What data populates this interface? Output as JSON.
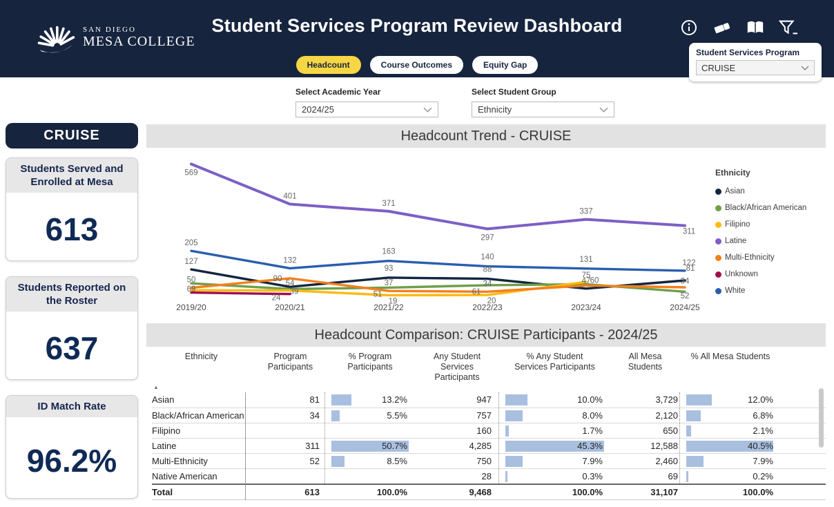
{
  "header": {
    "logo": {
      "line1": "SAN DIEGO",
      "line2": "MESA COLLEGE"
    },
    "title": "Student Services Program Review Dashboard",
    "tabs": [
      {
        "label": "Headcount",
        "active": true
      },
      {
        "label": "Course Outcomes",
        "active": false
      },
      {
        "label": "Equity Gap",
        "active": false
      }
    ],
    "icons": [
      "info-icon",
      "eraser-icon",
      "book-icon",
      "filter-icon"
    ],
    "program_filter": {
      "label": "Student Services Program",
      "value": "CRUISE"
    }
  },
  "filters": {
    "academic_year": {
      "label": "Select Academic Year",
      "value": "2024/25"
    },
    "student_group": {
      "label": "Select Student Group",
      "value": "Ethnicity"
    }
  },
  "sidebar": {
    "program_name": "CRUISE",
    "cards": [
      {
        "title": "Students Served and\nEnrolled at Mesa",
        "value": "613",
        "one_line": false
      },
      {
        "title": "Students Reported on\nthe Roster",
        "value": "637",
        "one_line": false
      },
      {
        "title": "ID Match Rate",
        "value": "96.2%",
        "one_line": true
      }
    ]
  },
  "chart_data": [
    {
      "id": "headcount_trend",
      "type": "line",
      "title": "Headcount Trend - CRUISE",
      "legend_title": "Ethnicity",
      "legend_position": "right",
      "gridlines": false,
      "ylim": [
        0,
        600
      ],
      "categories": [
        "2019/20",
        "2020/21",
        "2021/22",
        "2022/23",
        "2023/24",
        "2024/25"
      ],
      "series": [
        {
          "name": "Asian",
          "color": "#12263f",
          "values": [
            127,
            54,
            93,
            88,
            47,
            81
          ],
          "labels": [
            [
              "127",
              0,
              -8
            ],
            [
              "54",
              0,
              -2
            ],
            [
              "93",
              0,
              -10
            ],
            [
              "88",
              0,
              -10
            ],
            [
              "47",
              0,
              -8
            ],
            [
              "81",
              8,
              -14
            ]
          ]
        },
        {
          "name": "Black/African American",
          "color": "#6f9e49",
          "values": [
            69,
            45,
            51,
            61,
            65,
            34
          ],
          "labels": [
            [
              "69",
              0,
              12
            ],
            null,
            [
              "51",
              -16,
              13
            ],
            [
              "61",
              -16,
              13
            ],
            null,
            [
              "34",
              0,
              -12
            ]
          ]
        },
        {
          "name": "Filipino",
          "color": "#fcba12",
          "values": [
            40,
            39,
            19,
            20,
            75
          ],
          "labels": [
            null,
            [
              "39",
              6,
              5
            ],
            [
              "19",
              6,
              12
            ],
            [
              "20",
              6,
              12
            ],
            [
              "75",
              0,
              -6
            ]
          ]
        },
        {
          "name": "Latine",
          "color": "#7d5fc6",
          "values": [
            569,
            401,
            371,
            297,
            337,
            311
          ],
          "labels": [
            [
              "569",
              0,
              16
            ],
            [
              "401",
              0,
              -8
            ],
            [
              "371",
              0,
              -8
            ],
            [
              "297",
              0,
              16
            ],
            [
              "337",
              0,
              -8
            ],
            [
              "311",
              6,
              12
            ]
          ]
        },
        {
          "name": "Multi-Ethnicity",
          "color": "#f3801e",
          "values": [
            50,
            90,
            37,
            34,
            60,
            52
          ],
          "labels": [
            [
              "50",
              0,
              -8
            ],
            [
              "90",
              -18,
              4
            ],
            [
              "37",
              0,
              -8
            ],
            [
              "34",
              0,
              -8
            ],
            [
              "60",
              12,
              -4
            ],
            [
              "52",
              0,
              16
            ]
          ]
        },
        {
          "name": "Unknown",
          "color": "#a00d4f",
          "values": [
            30,
            24
          ],
          "labels": [
            null,
            [
              "24",
              -20,
              9
            ]
          ]
        },
        {
          "name": "White",
          "color": "#2a5db0",
          "values": [
            205,
            132,
            163,
            140,
            131,
            122
          ],
          "labels": [
            [
              "205",
              0,
              -8
            ],
            [
              "132",
              0,
              -8
            ],
            [
              "163",
              0,
              -10
            ],
            [
              "140",
              0,
              -10
            ],
            [
              "131",
              0,
              -10
            ],
            [
              "122",
              6,
              -8
            ]
          ]
        }
      ]
    },
    {
      "id": "headcount_comparison",
      "type": "table",
      "title": "Headcount Comparison: CRUISE Participants - 2024/25",
      "bar_color": "#a9bfdf",
      "sort_indicator": "▲",
      "columns": [
        {
          "key": "ethnicity",
          "label": "Ethnicity",
          "align": "left"
        },
        {
          "key": "program",
          "label": "Program\nParticipants",
          "align": "right"
        },
        {
          "key": "pct_program",
          "label": "% Program\nParticipants",
          "type": "bar"
        },
        {
          "key": "any_ss",
          "label": "Any Student\nServices\nParticipants",
          "align": "right"
        },
        {
          "key": "pct_any",
          "label": "% Any Student\nServices Participants",
          "type": "bar"
        },
        {
          "key": "all_mesa",
          "label": "All Mesa\nStudents",
          "align": "right"
        },
        {
          "key": "pct_all",
          "label": "% All Mesa Students",
          "type": "bar"
        }
      ],
      "rows": [
        {
          "ethnicity": "Asian",
          "program": "81",
          "pct_program": "13.2%",
          "pct_program_value": 13.2,
          "any_ss": "947",
          "pct_any": "10.0%",
          "pct_any_value": 10.0,
          "all_mesa": "3,729",
          "pct_all": "12.0%",
          "pct_all_value": 12.0
        },
        {
          "ethnicity": "Black/African American",
          "program": "34",
          "pct_program": "5.5%",
          "pct_program_value": 5.5,
          "any_ss": "757",
          "pct_any": "8.0%",
          "pct_any_value": 8.0,
          "all_mesa": "2,120",
          "pct_all": "6.8%",
          "pct_all_value": 6.8
        },
        {
          "ethnicity": "Filipino",
          "program": "",
          "pct_program": "",
          "pct_program_value": null,
          "any_ss": "160",
          "pct_any": "1.7%",
          "pct_any_value": 1.7,
          "all_mesa": "650",
          "pct_all": "2.1%",
          "pct_all_value": 2.1
        },
        {
          "ethnicity": "Latine",
          "program": "311",
          "pct_program": "50.7%",
          "pct_program_value": 50.7,
          "any_ss": "4,285",
          "pct_any": "45.3%",
          "pct_any_value": 45.3,
          "all_mesa": "12,588",
          "pct_all": "40.5%",
          "pct_all_value": 40.5
        },
        {
          "ethnicity": "Multi-Ethnicity",
          "program": "52",
          "pct_program": "8.5%",
          "pct_program_value": 8.5,
          "any_ss": "750",
          "pct_any": "7.9%",
          "pct_any_value": 7.9,
          "all_mesa": "2,460",
          "pct_all": "7.9%",
          "pct_all_value": 7.9
        },
        {
          "ethnicity": "Native American",
          "program": "",
          "pct_program": "",
          "pct_program_value": null,
          "any_ss": "28",
          "pct_any": "0.3%",
          "pct_any_value": 0.3,
          "all_mesa": "69",
          "pct_all": "0.2%",
          "pct_all_value": 0.2
        }
      ],
      "total_row": {
        "ethnicity": "Total",
        "program": "613",
        "pct_program": "100.0%",
        "pct_program_value": null,
        "any_ss": "9,468",
        "pct_any": "100.0%",
        "pct_any_value": null,
        "all_mesa": "31,107",
        "pct_all": "100.0%",
        "pct_all_value": null
      }
    }
  ]
}
